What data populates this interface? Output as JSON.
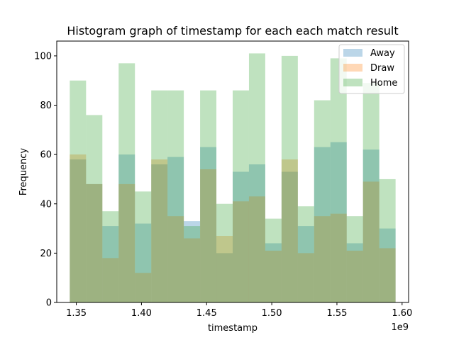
{
  "chart_data": {
    "type": "bar",
    "title": "Histogram graph of timestamp for each each match result",
    "xlabel": "timestamp",
    "ylabel": "Frequency",
    "x_offset_label": "1e9",
    "xlim": [
      1.335,
      1.605
    ],
    "ylim": [
      0,
      106
    ],
    "x_ticks": [
      1.35,
      1.4,
      1.45,
      1.5,
      1.55,
      1.6
    ],
    "x_tick_labels": [
      "1.35",
      "1.40",
      "1.45",
      "1.50",
      "1.55",
      "1.60"
    ],
    "y_ticks": [
      0,
      20,
      40,
      60,
      80,
      100
    ],
    "y_tick_labels": [
      "0",
      "20",
      "40",
      "60",
      "80",
      "100"
    ],
    "bin_edges": [
      1.345,
      1.3575,
      1.37,
      1.3825,
      1.395,
      1.4075,
      1.42,
      1.4325,
      1.445,
      1.4575,
      1.47,
      1.4825,
      1.495,
      1.5075,
      1.52,
      1.5325,
      1.545,
      1.5575,
      1.57,
      1.5825,
      1.595
    ],
    "grid": false,
    "legend_position": "top-right",
    "series": [
      {
        "name": "Away",
        "color": "#1f77b4",
        "opacity": 0.3,
        "values": [
          58,
          48,
          31,
          60,
          32,
          56,
          59,
          33,
          63,
          20,
          53,
          56,
          24,
          53,
          31,
          63,
          65,
          24,
          62,
          30
        ]
      },
      {
        "name": "Draw",
        "color": "#ff7f0e",
        "opacity": 0.3,
        "values": [
          60,
          48,
          18,
          48,
          12,
          58,
          35,
          26,
          54,
          27,
          41,
          43,
          21,
          58,
          20,
          35,
          36,
          21,
          49,
          22
        ]
      },
      {
        "name": "Home",
        "color": "#2ca02c",
        "opacity": 0.3,
        "values": [
          90,
          76,
          37,
          97,
          45,
          86,
          86,
          31,
          86,
          40,
          86,
          101,
          34,
          100,
          39,
          82,
          99,
          35,
          89,
          50
        ]
      }
    ]
  }
}
